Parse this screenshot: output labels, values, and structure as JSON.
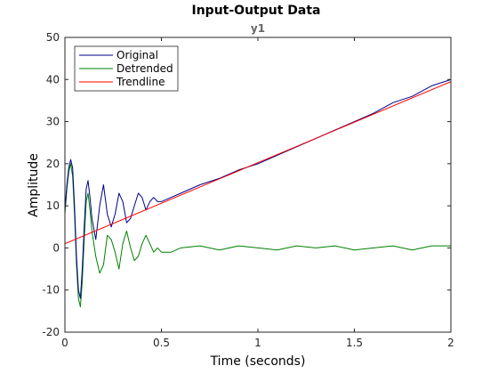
{
  "chart_data": {
    "type": "line",
    "title": "Input-Output Data",
    "subtitle": "y1",
    "xlabel": "Time (seconds)",
    "ylabel": "Amplitude",
    "xlim": [
      0,
      2
    ],
    "ylim": [
      -20,
      50
    ],
    "xticks": [
      0,
      0.5,
      1,
      1.5,
      2
    ],
    "xtick_labels": [
      "0",
      "0.5",
      "1",
      "1.5",
      "2"
    ],
    "yticks": [
      -20,
      -10,
      0,
      10,
      20,
      30,
      40,
      50
    ],
    "ytick_labels": [
      "-20",
      "-10",
      "0",
      "10",
      "20",
      "30",
      "40",
      "50"
    ],
    "grid": false,
    "legend_position": "top-left",
    "series": [
      {
        "name": "Original",
        "color": "#00008b",
        "x": [
          0,
          0.01,
          0.02,
          0.03,
          0.04,
          0.05,
          0.06,
          0.07,
          0.08,
          0.09,
          0.1,
          0.11,
          0.12,
          0.13,
          0.14,
          0.16,
          0.18,
          0.2,
          0.22,
          0.24,
          0.26,
          0.28,
          0.3,
          0.32,
          0.34,
          0.36,
          0.38,
          0.4,
          0.42,
          0.44,
          0.46,
          0.48,
          0.5,
          0.55,
          0.6,
          0.7,
          0.8,
          0.9,
          1.0,
          1.1,
          1.2,
          1.3,
          1.4,
          1.5,
          1.6,
          1.7,
          1.8,
          1.9,
          2.0
        ],
        "y": [
          9,
          15,
          19,
          21,
          19,
          10,
          -2,
          -10,
          -12,
          -5,
          5,
          14,
          16,
          12,
          7,
          2,
          10,
          15,
          8,
          5,
          8,
          13,
          11,
          6,
          7,
          10,
          13,
          12,
          9,
          11,
          12,
          11,
          11,
          12,
          13,
          15,
          16.5,
          18.5,
          20,
          22,
          24,
          26,
          28,
          30,
          32,
          34.5,
          36,
          38.5,
          40
        ]
      },
      {
        "name": "Detrended",
        "color": "#008000",
        "x": [
          0,
          0.01,
          0.02,
          0.03,
          0.04,
          0.05,
          0.06,
          0.07,
          0.08,
          0.09,
          0.1,
          0.11,
          0.12,
          0.13,
          0.14,
          0.16,
          0.18,
          0.2,
          0.22,
          0.24,
          0.26,
          0.28,
          0.3,
          0.32,
          0.34,
          0.36,
          0.38,
          0.4,
          0.42,
          0.44,
          0.46,
          0.48,
          0.5,
          0.55,
          0.6,
          0.7,
          0.8,
          0.9,
          1.0,
          1.1,
          1.2,
          1.3,
          1.4,
          1.5,
          1.6,
          1.7,
          1.8,
          1.9,
          2.0
        ],
        "y": [
          8,
          14,
          18,
          20,
          17,
          8,
          -4,
          -12,
          -14,
          -8,
          2,
          11,
          13,
          9,
          4,
          -2,
          -6,
          -4,
          3,
          2,
          -1,
          -5,
          1,
          4,
          0,
          -3,
          -2,
          1,
          3,
          1,
          -1,
          0,
          -1,
          -1,
          0,
          0.5,
          -0.5,
          0.5,
          0,
          -0.5,
          0.5,
          0,
          0.5,
          -0.5,
          0,
          0.5,
          -0.5,
          0.5,
          0.5
        ]
      },
      {
        "name": "Trendline",
        "color": "#ff0000",
        "x": [
          0,
          2
        ],
        "y": [
          1,
          39.5
        ]
      }
    ]
  }
}
